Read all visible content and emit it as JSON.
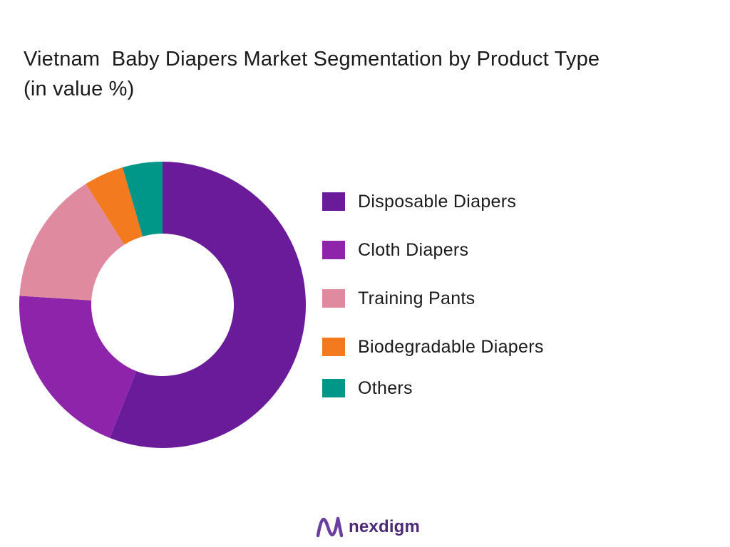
{
  "chart_data": {
    "type": "pie",
    "title": "Vietnam  Baby Diapers Market Segmentation by Product Type",
    "subtitle": "(in value %)",
    "categories": [
      "Disposable Diapers",
      "Cloth Diapers",
      "Training Pants",
      "Biodegradable Diapers",
      "Others"
    ],
    "values": [
      56,
      20,
      15,
      4.5,
      4.5
    ],
    "colors": [
      "#6a1b9a",
      "#8e24aa",
      "#e08aa0",
      "#f47a20",
      "#009688"
    ],
    "donut": true,
    "legend_position": "right"
  },
  "brand": {
    "name": "nexdigm",
    "logo_color": "#6a3ea1"
  }
}
